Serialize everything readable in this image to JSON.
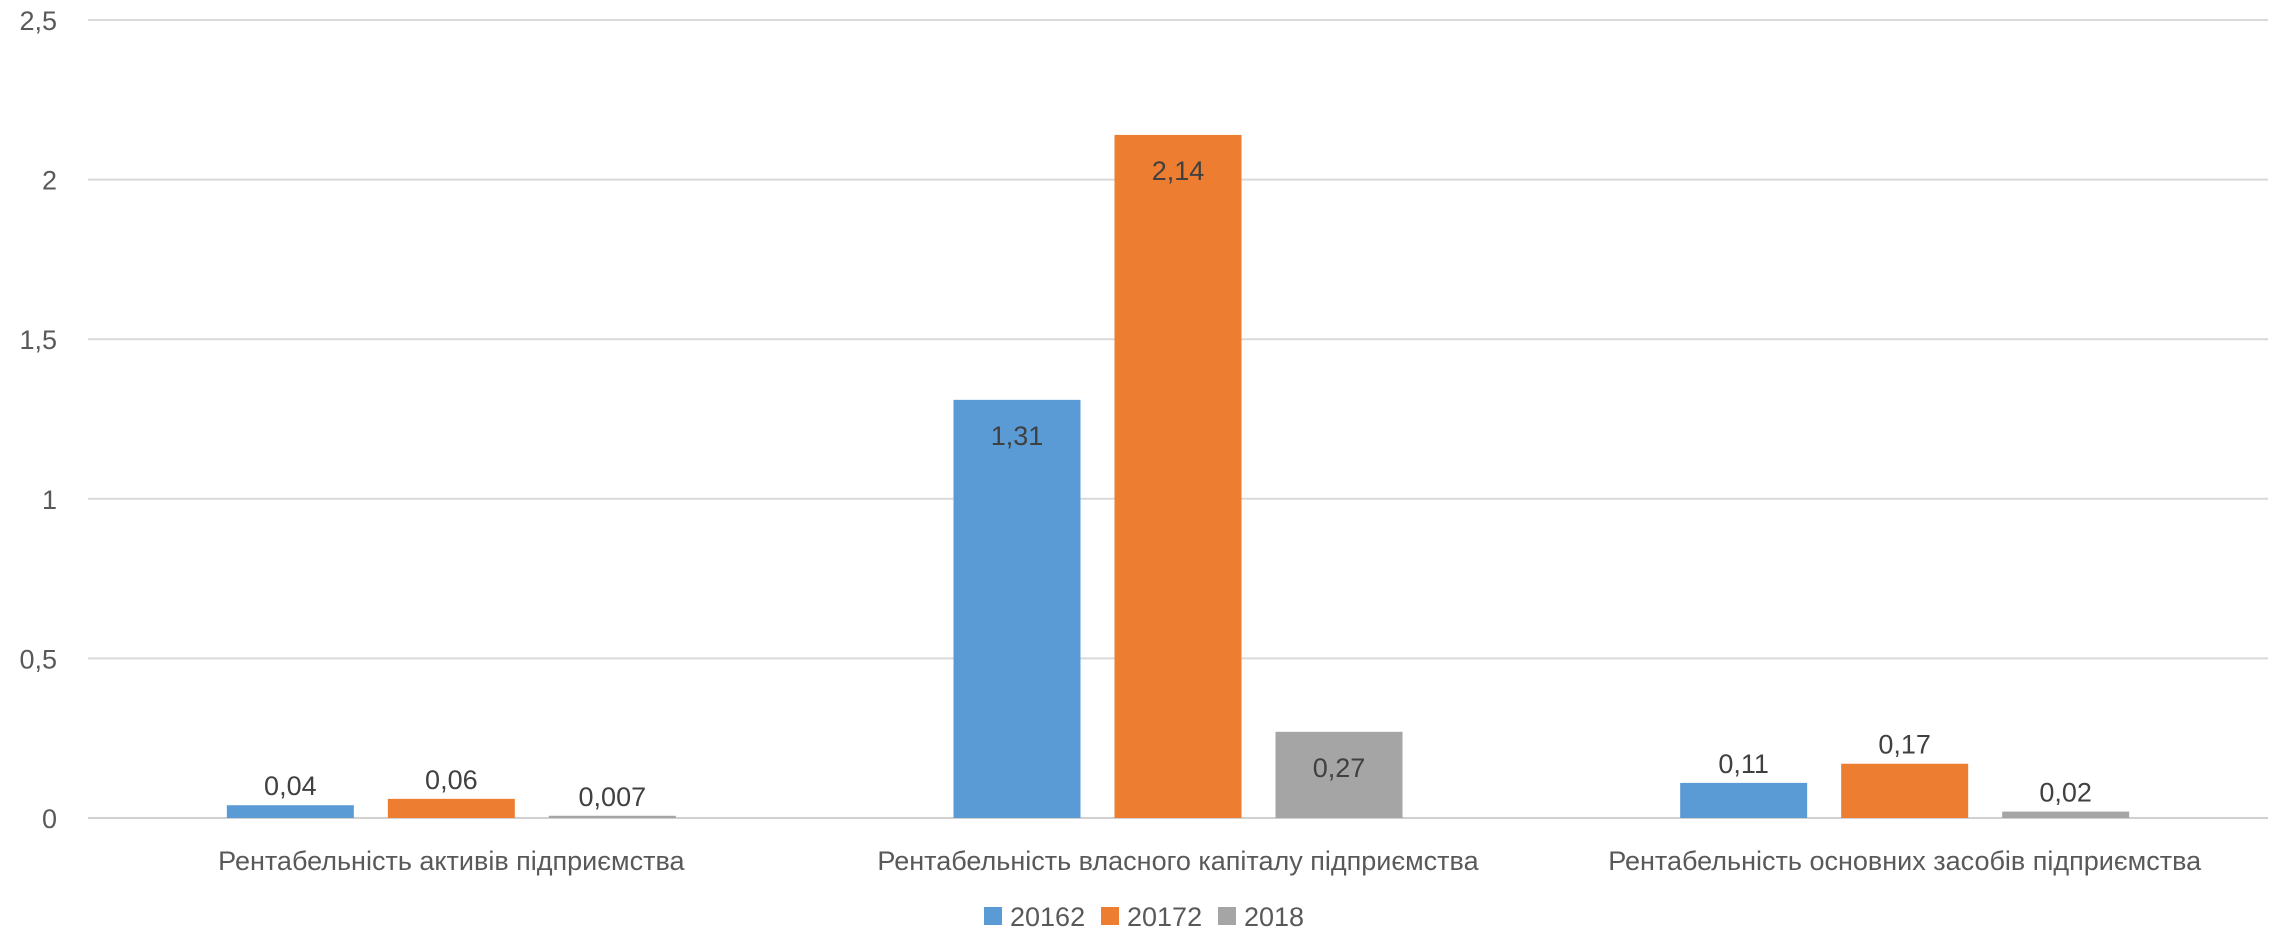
{
  "chart_data": {
    "type": "bar",
    "categories": [
      "Рентабельність активів підприємства",
      "Рентабельність власного капіталу підприємства",
      "Рентабельність основних засобів підприємства"
    ],
    "series": [
      {
        "name": "20162",
        "values": [
          0.04,
          1.31,
          0.11
        ],
        "labels": [
          "0,04",
          "1,31",
          "0,11"
        ],
        "color": "#5B9BD5"
      },
      {
        "name": "20172",
        "values": [
          0.06,
          2.14,
          0.17
        ],
        "labels": [
          "0,06",
          "2,14",
          "0,17"
        ],
        "color": "#ED7D31"
      },
      {
        "name": "2018",
        "values": [
          0.007,
          0.27,
          0.02
        ],
        "labels": [
          "0,007",
          "0,27",
          "0,02"
        ],
        "color": "#A5A5A5"
      }
    ],
    "ylim": [
      0,
      2.5
    ],
    "yticks": [
      0,
      0.5,
      1,
      1.5,
      2,
      2.5
    ],
    "ytick_labels": [
      "0",
      "0,5",
      "1",
      "1,5",
      "2",
      "2,5"
    ],
    "grid": true,
    "legend_position": "bottom"
  }
}
